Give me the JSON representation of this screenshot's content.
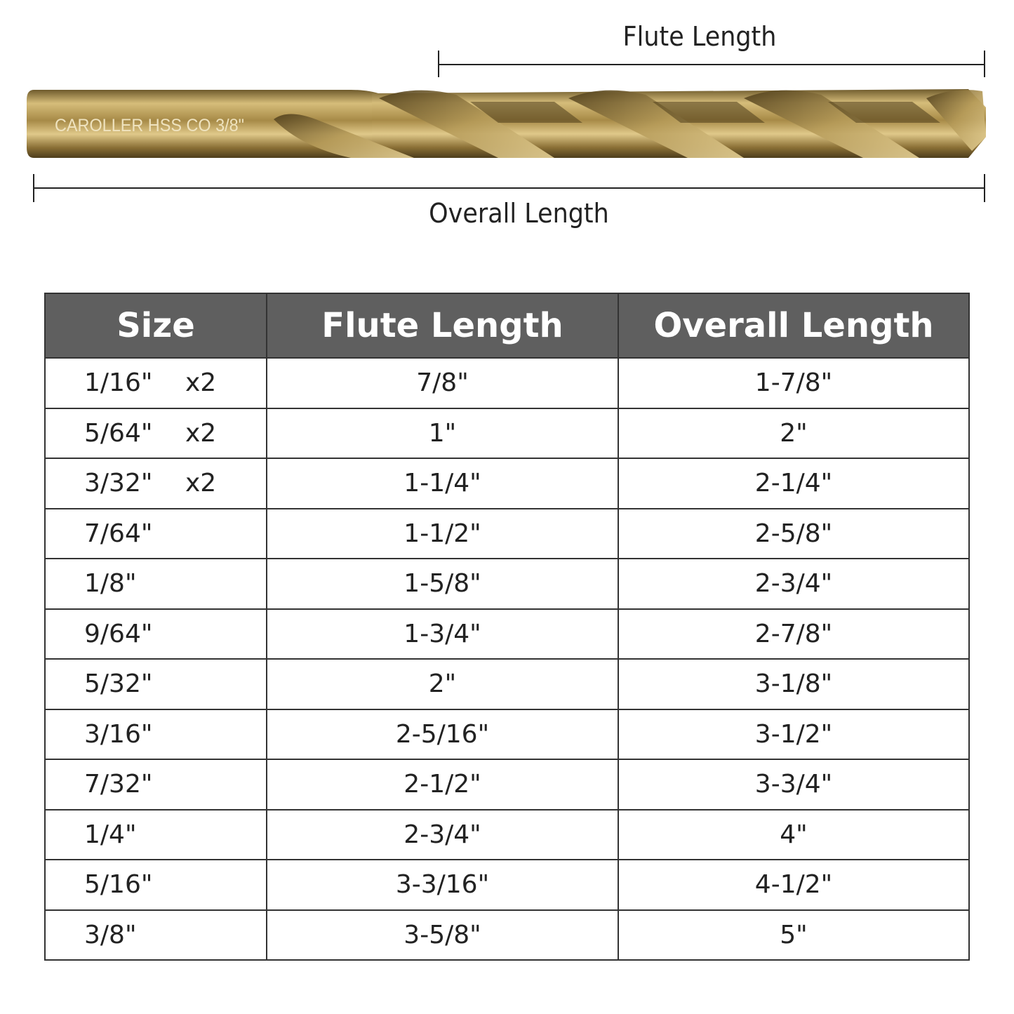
{
  "diagram": {
    "flute_label": "Flute Length",
    "overall_label": "Overall Length",
    "engraving": "CAROLLER HSS CO  3/8\"",
    "colors": {
      "drill_gold": "#b39550",
      "drill_dark": "#5e4a22",
      "header_bg": "#5f5f5f"
    }
  },
  "table": {
    "headers": [
      "Size",
      "Flute Length",
      "Overall Length"
    ],
    "rows": [
      {
        "size": "1/16\"",
        "qty": "x2",
        "flute": "7/8\"",
        "overall": "1-7/8\""
      },
      {
        "size": "5/64\"",
        "qty": "x2",
        "flute": "1\"",
        "overall": "2\""
      },
      {
        "size": "3/32\"",
        "qty": "x2",
        "flute": "1-1/4\"",
        "overall": "2-1/4\""
      },
      {
        "size": "7/64\"",
        "qty": "",
        "flute": "1-1/2\"",
        "overall": "2-5/8\""
      },
      {
        "size": "1/8\"",
        "qty": "",
        "flute": "1-5/8\"",
        "overall": "2-3/4\""
      },
      {
        "size": "9/64\"",
        "qty": "",
        "flute": "1-3/4\"",
        "overall": "2-7/8\""
      },
      {
        "size": "5/32\"",
        "qty": "",
        "flute": "2\"",
        "overall": "3-1/8\""
      },
      {
        "size": "3/16\"",
        "qty": "",
        "flute": "2-5/16\"",
        "overall": "3-1/2\""
      },
      {
        "size": "7/32\"",
        "qty": "",
        "flute": "2-1/2\"",
        "overall": "3-3/4\""
      },
      {
        "size": "1/4\"",
        "qty": "",
        "flute": "2-3/4\"",
        "overall": "4\""
      },
      {
        "size": "5/16\"",
        "qty": "",
        "flute": "3-3/16\"",
        "overall": "4-1/2\""
      },
      {
        "size": "3/8\"",
        "qty": "",
        "flute": "3-5/8\"",
        "overall": "5\""
      }
    ]
  }
}
